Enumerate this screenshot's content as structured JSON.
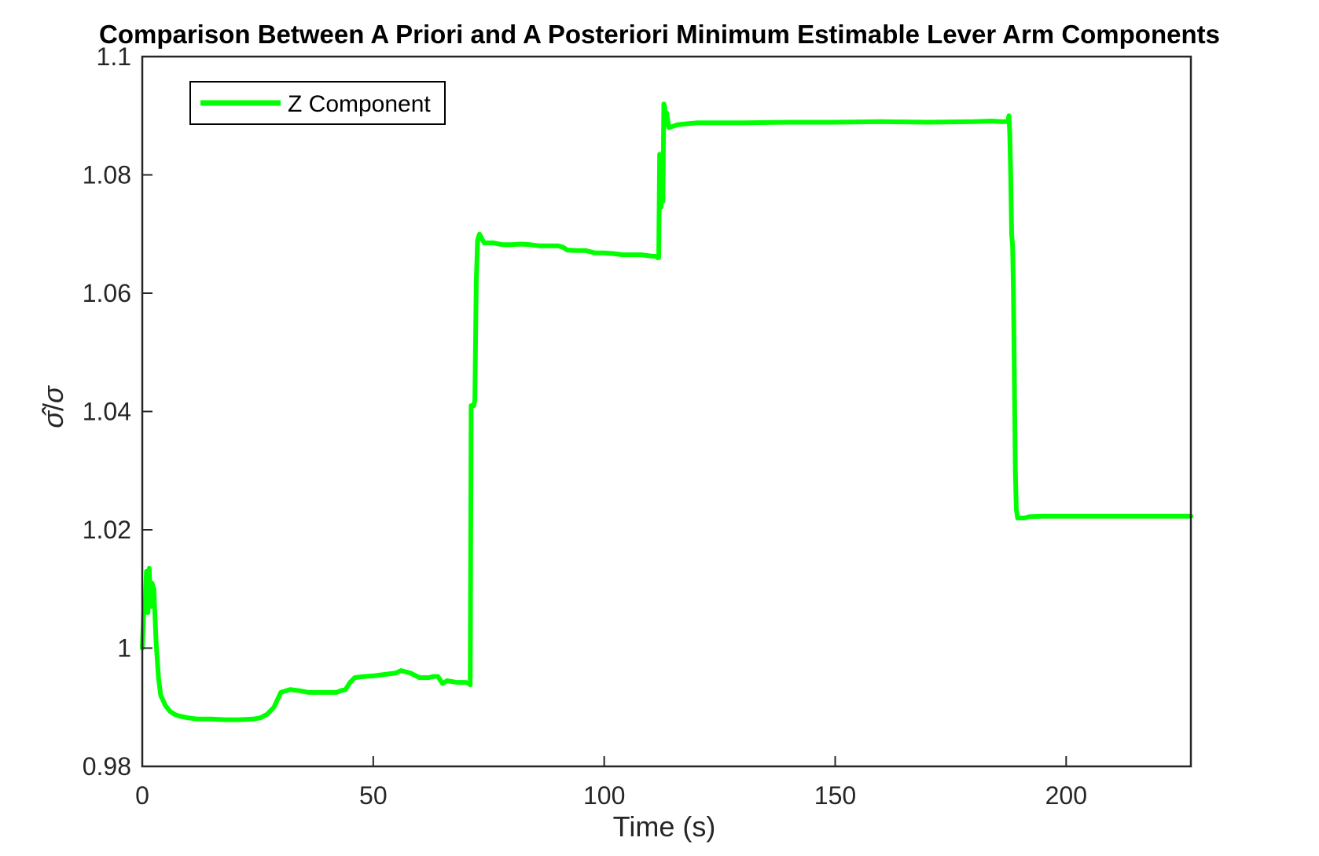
{
  "chart_data": {
    "type": "line",
    "title": "Comparison Between A Priori and A Posteriori Minimum Estimable Lever Arm Components",
    "xlabel": "Time (s)",
    "ylabel_main": "σ̂",
    "ylabel_slash": "/",
    "ylabel_den": "σ",
    "xlim": [
      0,
      227
    ],
    "ylim": [
      0.98,
      1.1
    ],
    "xticks": [
      0,
      50,
      100,
      150,
      200
    ],
    "xtick_labels": [
      "0",
      "50",
      "100",
      "150",
      "200"
    ],
    "yticks": [
      0.98,
      1.0,
      1.02,
      1.04,
      1.06,
      1.08,
      1.1
    ],
    "ytick_labels": [
      "0.98",
      "1",
      "1.02",
      "1.04",
      "1.06",
      "1.08",
      "1.1"
    ],
    "grid": false,
    "legend_position": "top-left",
    "series": [
      {
        "name": "Z Component",
        "color": "#00ff00",
        "x": [
          0,
          0.3,
          0.6,
          0.9,
          1.2,
          1.5,
          1.8,
          2.1,
          2.5,
          3,
          3.5,
          4,
          5,
          6,
          7,
          8,
          10,
          12,
          15,
          18,
          21,
          24,
          25.5,
          27,
          28.5,
          30,
          32,
          34,
          36,
          38,
          40,
          42,
          43,
          44,
          45,
          46,
          48,
          50,
          52,
          54,
          55,
          56,
          57,
          58,
          60,
          62,
          63,
          64,
          65,
          66,
          68,
          70,
          70.7,
          71,
          71.2,
          71.5,
          71.8,
          72,
          72.3,
          72.6,
          73,
          74,
          75,
          76,
          78,
          80,
          82,
          84,
          86,
          88,
          90,
          91,
          92,
          94,
          96,
          98,
          100,
          102,
          104,
          106,
          108,
          110,
          111.5,
          111.6,
          111.8,
          112,
          112.1,
          112.3,
          112.5,
          112.7,
          112.9,
          113.1,
          113.3,
          113.5,
          114,
          116,
          120,
          125,
          130,
          140,
          150,
          160,
          170,
          180,
          184,
          186,
          187,
          187.4,
          187.6,
          187.8,
          188,
          188.2,
          188.4,
          188.6,
          188.8,
          189,
          189.2,
          189.5,
          190,
          191,
          192,
          195,
          200,
          210,
          220,
          227
        ],
        "y": [
          1.0,
          1.006,
          1.006,
          1.013,
          1.006,
          1.0135,
          1.007,
          1.011,
          1.01,
          1.001,
          0.995,
          0.992,
          0.9903,
          0.9893,
          0.9888,
          0.9885,
          0.9882,
          0.988,
          0.988,
          0.9879,
          0.9879,
          0.988,
          0.9882,
          0.9888,
          0.99,
          0.9925,
          0.993,
          0.9928,
          0.9925,
          0.9925,
          0.9925,
          0.9925,
          0.9928,
          0.993,
          0.9942,
          0.995,
          0.9952,
          0.9953,
          0.9955,
          0.9957,
          0.9958,
          0.9962,
          0.996,
          0.9958,
          0.995,
          0.995,
          0.9952,
          0.9952,
          0.994,
          0.9945,
          0.9942,
          0.9942,
          0.994,
          0.9938,
          1.041,
          1.041,
          1.041,
          1.042,
          1.062,
          1.069,
          1.07,
          1.0685,
          1.0685,
          1.0685,
          1.0682,
          1.0682,
          1.0683,
          1.0682,
          1.068,
          1.068,
          1.068,
          1.0678,
          1.0673,
          1.0672,
          1.0672,
          1.0668,
          1.0668,
          1.0667,
          1.0665,
          1.0665,
          1.0665,
          1.0663,
          1.0662,
          1.066,
          1.066,
          1.0835,
          1.0745,
          1.0745,
          1.0835,
          1.0755,
          1.092,
          1.0915,
          1.0885,
          1.0905,
          1.088,
          1.0885,
          1.0888,
          1.0888,
          1.0888,
          1.0889,
          1.0889,
          1.089,
          1.0889,
          1.089,
          1.0891,
          1.089,
          1.089,
          1.0891,
          1.09,
          1.087,
          1.08,
          1.07,
          1.068,
          1.06,
          1.045,
          1.03,
          1.0235,
          1.022,
          1.022,
          1.022,
          1.0222,
          1.0223,
          1.0223,
          1.0223,
          1.0223,
          1.0223
        ]
      }
    ]
  }
}
